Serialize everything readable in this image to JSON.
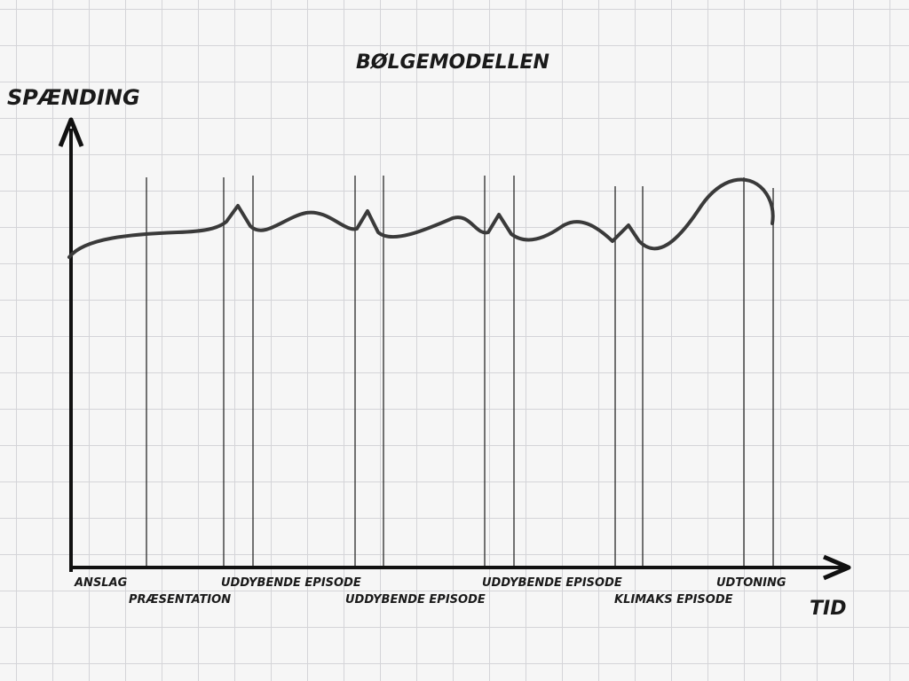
{
  "title": "BØLGEMODELLEN",
  "y_axis_label": "SPÆNDING",
  "x_axis_label": "TID",
  "phases": [
    "ANSLAG",
    "PRÆSENTATION",
    "UDDYBENDE EPISODE",
    "UDDYBENDE EPISODE",
    "UDDYBENDE EPISODE",
    "KLIMAKS EPISODE",
    "UDTONING"
  ]
}
